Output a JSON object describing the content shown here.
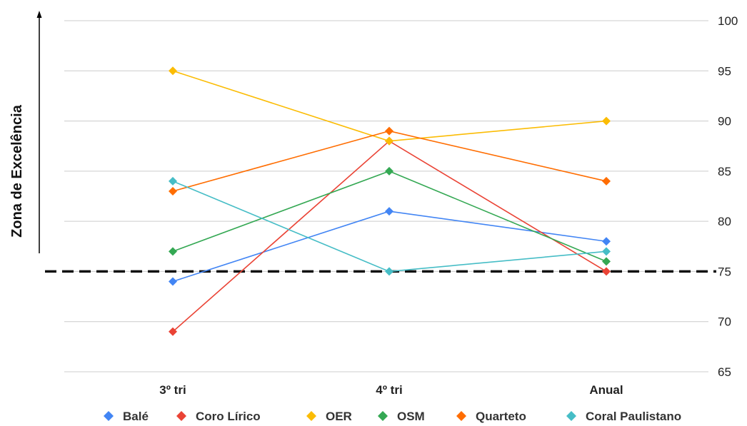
{
  "chart_data": {
    "type": "line",
    "categories": [
      "3º tri",
      "4º tri",
      "Anual"
    ],
    "ylabel": "Zona de Excelência",
    "ylim": [
      65,
      100
    ],
    "yticks": [
      65,
      70,
      75,
      80,
      85,
      90,
      95,
      100
    ],
    "y_axis_side": "right",
    "grid": true,
    "legend_position": "bottom",
    "reference_line": {
      "value": 75,
      "style": "dashed",
      "color": "#111111"
    },
    "series": [
      {
        "name": "Balé",
        "color": "#4285F4",
        "values": [
          74,
          81,
          78
        ]
      },
      {
        "name": "Coro Lírico",
        "color": "#EA4335",
        "values": [
          69,
          88,
          75
        ]
      },
      {
        "name": "OER",
        "color": "#FBBC04",
        "values": [
          95,
          88,
          90
        ]
      },
      {
        "name": "OSM",
        "color": "#34A853",
        "values": [
          77,
          85,
          76
        ]
      },
      {
        "name": "Quarteto",
        "color": "#FF6D01",
        "values": [
          83,
          89,
          84
        ]
      },
      {
        "name": "Coral Paulistano",
        "color": "#46BDC6",
        "values": [
          84,
          75,
          77
        ]
      }
    ]
  }
}
